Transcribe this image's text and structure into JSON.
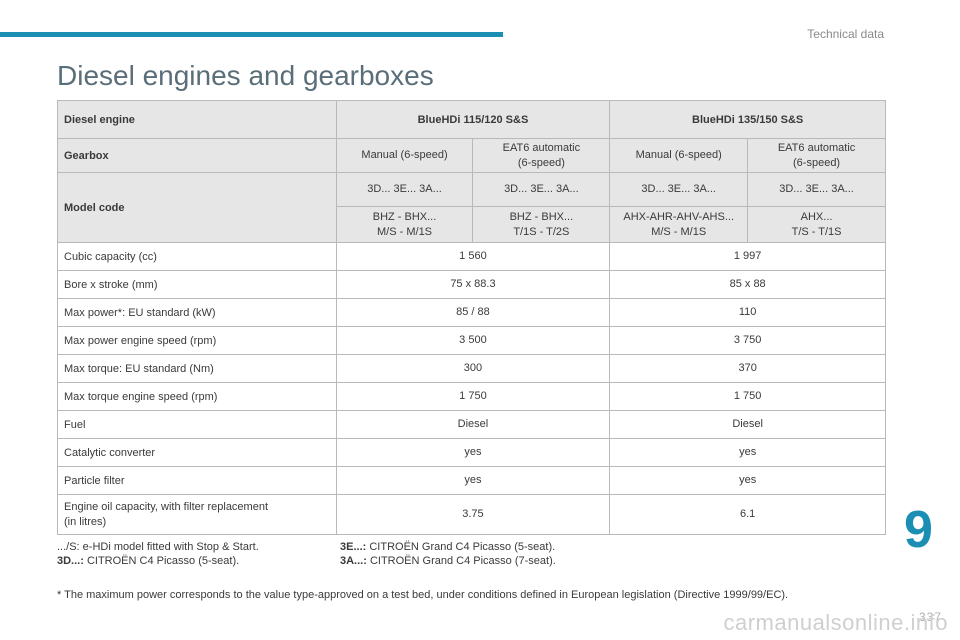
{
  "header": {
    "section": "Technical data",
    "title": "Diesel engines and gearboxes"
  },
  "table": {
    "head": {
      "label": "Diesel engine",
      "engine_a": "BlueHDi 115/120 S&S",
      "engine_b": "BlueHDi 135/150 S&S"
    },
    "gearbox": {
      "label": "Gearbox",
      "values": [
        "Manual (6-speed)",
        "EAT6 automatic\n(6-speed)",
        "Manual (6-speed)",
        "EAT6 automatic\n(6-speed)"
      ]
    },
    "model": {
      "label": "Model code",
      "codes": [
        "3D... 3E... 3A...",
        "3D... 3E... 3A...",
        "3D... 3E... 3A...",
        "3D... 3E... 3A..."
      ],
      "variants": [
        "BHZ - BHX...\nM/S - M/1S",
        "BHZ - BHX...\nT/1S - T/2S",
        "AHX-AHR-AHV-AHS...\nM/S - M/1S",
        "AHX...\nT/S - T/1S"
      ]
    },
    "rows": [
      {
        "label": "Cubic capacity (cc)",
        "a": "1 560",
        "b": "1 997"
      },
      {
        "label": "Bore x stroke (mm)",
        "a": "75 x 88.3",
        "b": "85 x 88"
      },
      {
        "label": "Max power*: EU standard (kW)",
        "a": "85 / 88",
        "b": "110"
      },
      {
        "label": "Max power engine speed (rpm)",
        "a": "3 500",
        "b": "3 750"
      },
      {
        "label": "Max torque: EU standard (Nm)",
        "a": "300",
        "b": "370"
      },
      {
        "label": "Max torque engine speed (rpm)",
        "a": "1 750",
        "b": "1 750"
      },
      {
        "label": "Fuel",
        "a": "Diesel",
        "b": "Diesel"
      },
      {
        "label": "Catalytic converter",
        "a": "yes",
        "b": "yes"
      },
      {
        "label": "Particle filter",
        "a": "yes",
        "b": "yes"
      }
    ],
    "oil": {
      "label": "Engine oil capacity, with filter replacement\n(in litres)",
      "a": "3.75",
      "b": "6.1"
    }
  },
  "notes": {
    "s_label": ".../S: e-HDi model fitted with Stop & Start.",
    "d_code": "3D...:",
    "d_text": " CITROËN C4 Picasso (5-seat).",
    "e_code": "3E...:",
    "e_text": " CITROËN Grand C4 Picasso (5-seat).",
    "a_code": "3A...:",
    "a_text": " CITROËN Grand C4 Picasso (7-seat)."
  },
  "footnote": "* The maximum power corresponds to the value type-approved on a test bed, under conditions defined in European legislation (Directive 1999/99/EC).",
  "chapter": "9",
  "page_number": "337",
  "watermark": "carmanualsonline.info",
  "colors": {
    "accent": "#1a8fb3",
    "header_bg": "#e6e6e6",
    "title": "#5a6e7a"
  }
}
